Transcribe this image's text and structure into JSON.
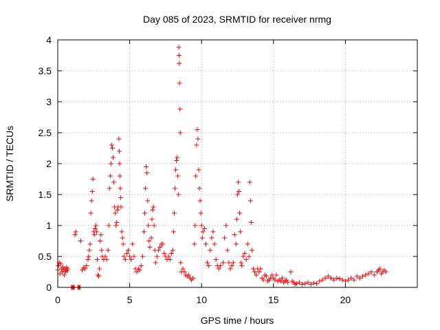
{
  "chart_data": {
    "type": "scatter",
    "title": "Day 085 of 2023, SRMTID for receiver nrmg",
    "xlabel": "GPS time / hours",
    "ylabel": "SRMTID / TECUs",
    "xlim": [
      0,
      25
    ],
    "ylim": [
      0,
      4
    ],
    "xticks": [
      0,
      5,
      10,
      15,
      20
    ],
    "xtick_labels": [
      "0",
      "5",
      "10",
      "15",
      "20"
    ],
    "yticks": [
      0,
      0.5,
      1,
      1.5,
      2,
      2.5,
      3,
      3.5,
      4
    ],
    "ytick_labels": [
      "0",
      "0.5",
      "1",
      "1.5",
      "2",
      "2.5",
      "3",
      "3.5",
      "4"
    ],
    "grid": true,
    "marker": "+",
    "series": [
      {
        "name": "SRMTID",
        "color": "#ff0000",
        "points": [
          [
            0.0,
            0.28
          ],
          [
            0.05,
            0.35
          ],
          [
            0.1,
            0.4
          ],
          [
            0.15,
            0.22
          ],
          [
            0.2,
            0.38
          ],
          [
            0.25,
            0.3
          ],
          [
            0.3,
            0.25
          ],
          [
            0.35,
            0.33
          ],
          [
            0.4,
            0.28
          ],
          [
            0.45,
            0.2
          ],
          [
            0.5,
            0.3
          ],
          [
            0.55,
            0.25
          ],
          [
            0.6,
            0.32
          ],
          [
            0.65,
            0.27
          ],
          [
            0.7,
            0.3
          ],
          [
            0.95,
            0.0
          ],
          [
            1.0,
            0.0
          ],
          [
            1.05,
            0.0
          ],
          [
            1.1,
            0.0
          ],
          [
            1.15,
            0.0
          ],
          [
            1.4,
            0.0
          ],
          [
            1.45,
            0.0
          ],
          [
            1.5,
            0.0
          ],
          [
            1.55,
            0.0
          ],
          [
            1.2,
            0.85
          ],
          [
            1.25,
            0.9
          ],
          [
            1.6,
            0.75
          ],
          [
            1.7,
            0.28
          ],
          [
            1.8,
            0.32
          ],
          [
            1.9,
            0.3
          ],
          [
            2.0,
            0.35
          ],
          [
            2.1,
            0.45
          ],
          [
            2.15,
            0.5
          ],
          [
            2.2,
            0.6
          ],
          [
            2.25,
            0.7
          ],
          [
            2.3,
            1.2
          ],
          [
            2.35,
            1.4
          ],
          [
            2.4,
            1.55
          ],
          [
            2.45,
            1.75
          ],
          [
            2.5,
            0.9
          ],
          [
            2.55,
            0.85
          ],
          [
            2.6,
            0.95
          ],
          [
            2.65,
            1.0
          ],
          [
            2.7,
            0.9
          ],
          [
            2.75,
            0.45
          ],
          [
            2.8,
            0.2
          ],
          [
            2.85,
            0.18
          ],
          [
            2.9,
            0.3
          ],
          [
            2.95,
            0.75
          ],
          [
            3.0,
            0.85
          ],
          [
            3.05,
            0.6
          ],
          [
            3.1,
            0.5
          ],
          [
            3.2,
            0.45
          ],
          [
            3.3,
            0.5
          ],
          [
            3.4,
            0.45
          ],
          [
            3.5,
            0.6
          ],
          [
            3.55,
            1.0
          ],
          [
            3.6,
            1.6
          ],
          [
            3.65,
            1.8
          ],
          [
            3.7,
            2.0
          ],
          [
            3.75,
            2.3
          ],
          [
            3.8,
            2.25
          ],
          [
            3.85,
            2.1
          ],
          [
            3.9,
            1.7
          ],
          [
            3.95,
            1.3
          ],
          [
            4.0,
            1.2
          ],
          [
            4.05,
            1.0
          ],
          [
            4.1,
            1.05
          ],
          [
            4.15,
            1.25
          ],
          [
            4.2,
            1.3
          ],
          [
            4.25,
            2.4
          ],
          [
            4.28,
            2.2
          ],
          [
            4.3,
            2.0
          ],
          [
            4.32,
            1.8
          ],
          [
            4.35,
            1.6
          ],
          [
            4.38,
            1.45
          ],
          [
            4.4,
            1.3
          ],
          [
            4.45,
            0.9
          ],
          [
            4.5,
            0.8
          ],
          [
            4.55,
            0.7
          ],
          [
            4.6,
            0.5
          ],
          [
            4.7,
            0.45
          ],
          [
            4.8,
            0.55
          ],
          [
            4.9,
            0.6
          ],
          [
            5.0,
            0.5
          ],
          [
            5.1,
            0.45
          ],
          [
            5.2,
            0.7
          ],
          [
            5.3,
            0.5
          ],
          [
            5.4,
            0.3
          ],
          [
            5.5,
            0.25
          ],
          [
            5.6,
            0.3
          ],
          [
            5.7,
            0.28
          ],
          [
            5.8,
            0.35
          ],
          [
            5.9,
            0.5
          ],
          [
            6.0,
            0.9
          ],
          [
            6.05,
            1.2
          ],
          [
            6.1,
            1.6
          ],
          [
            6.15,
            1.95
          ],
          [
            6.2,
            1.85
          ],
          [
            6.25,
            1.4
          ],
          [
            6.3,
            1.0
          ],
          [
            6.35,
            0.75
          ],
          [
            6.4,
            0.65
          ],
          [
            6.5,
            0.8
          ],
          [
            6.55,
            1.1
          ],
          [
            6.6,
            1.25
          ],
          [
            6.65,
            1.3
          ],
          [
            6.7,
            1.0
          ],
          [
            6.75,
            0.6
          ],
          [
            6.8,
            0.4
          ],
          [
            6.9,
            0.5
          ],
          [
            7.0,
            0.6
          ],
          [
            7.1,
            0.65
          ],
          [
            7.2,
            0.7
          ],
          [
            7.3,
            0.7
          ],
          [
            7.4,
            0.55
          ],
          [
            7.5,
            0.5
          ],
          [
            7.6,
            0.45
          ],
          [
            7.7,
            0.5
          ],
          [
            7.8,
            0.45
          ],
          [
            7.9,
            0.55
          ],
          [
            8.0,
            0.6
          ],
          [
            8.05,
            0.9
          ],
          [
            8.1,
            1.2
          ],
          [
            8.15,
            1.6
          ],
          [
            8.2,
            1.9
          ],
          [
            8.25,
            2.05
          ],
          [
            8.3,
            2.1
          ],
          [
            8.35,
            1.8
          ],
          [
            8.4,
            1.5
          ],
          [
            8.42,
            3.88
          ],
          [
            8.44,
            3.75
          ],
          [
            8.45,
            3.62
          ],
          [
            8.47,
            3.3
          ],
          [
            8.5,
            2.88
          ],
          [
            8.52,
            2.5
          ],
          [
            8.55,
            0.4
          ],
          [
            8.6,
            0.25
          ],
          [
            8.7,
            0.3
          ],
          [
            8.8,
            0.25
          ],
          [
            8.9,
            0.2
          ],
          [
            9.0,
            0.18
          ],
          [
            9.1,
            0.2
          ],
          [
            9.2,
            0.15
          ],
          [
            9.3,
            0.12
          ],
          [
            9.4,
            0.15
          ],
          [
            9.5,
            0.7
          ],
          [
            9.55,
            1.0
          ],
          [
            9.6,
            1.8
          ],
          [
            9.65,
            2.3
          ],
          [
            9.7,
            2.55
          ],
          [
            9.75,
            2.4
          ],
          [
            9.8,
            1.9
          ],
          [
            9.85,
            1.6
          ],
          [
            9.9,
            1.4
          ],
          [
            9.95,
            1.2
          ],
          [
            10.0,
            1.0
          ],
          [
            10.05,
            0.8
          ],
          [
            10.1,
            0.9
          ],
          [
            10.2,
            0.95
          ],
          [
            10.3,
            0.7
          ],
          [
            10.4,
            0.4
          ],
          [
            10.5,
            0.35
          ],
          [
            10.6,
            0.6
          ],
          [
            10.7,
            0.8
          ],
          [
            10.8,
            0.9
          ],
          [
            10.9,
            0.7
          ],
          [
            11.0,
            0.45
          ],
          [
            11.1,
            0.35
          ],
          [
            11.2,
            0.3
          ],
          [
            11.3,
            0.35
          ],
          [
            11.5,
            0.4
          ],
          [
            11.6,
            0.8
          ],
          [
            11.7,
            1.0
          ],
          [
            11.8,
            0.6
          ],
          [
            11.9,
            0.4
          ],
          [
            12.0,
            0.3
          ],
          [
            12.1,
            0.35
          ],
          [
            12.2,
            0.4
          ],
          [
            12.3,
            0.85
          ],
          [
            12.4,
            0.7
          ],
          [
            12.45,
            1.1
          ],
          [
            12.5,
            1.5
          ],
          [
            12.55,
            1.7
          ],
          [
            12.6,
            1.55
          ],
          [
            12.65,
            1.2
          ],
          [
            12.7,
            0.9
          ],
          [
            12.75,
            0.4
          ],
          [
            12.8,
            0.35
          ],
          [
            12.9,
            0.5
          ],
          [
            13.0,
            0.55
          ],
          [
            13.1,
            0.45
          ],
          [
            13.2,
            0.7
          ],
          [
            13.3,
            0.5
          ],
          [
            13.35,
            1.7
          ],
          [
            13.4,
            1.4
          ],
          [
            13.45,
            1.05
          ],
          [
            13.5,
            0.6
          ],
          [
            13.6,
            0.3
          ],
          [
            13.7,
            0.25
          ],
          [
            13.8,
            0.2
          ],
          [
            13.9,
            0.3
          ],
          [
            14.0,
            0.25
          ],
          [
            14.1,
            0.3
          ],
          [
            14.2,
            0.15
          ],
          [
            14.3,
            0.12
          ],
          [
            14.4,
            0.2
          ],
          [
            14.5,
            0.18
          ],
          [
            14.6,
            0.1
          ],
          [
            14.7,
            0.12
          ],
          [
            14.8,
            0.15
          ],
          [
            14.9,
            0.2
          ],
          [
            15.0,
            0.15
          ],
          [
            15.1,
            0.12
          ],
          [
            15.2,
            0.2
          ],
          [
            15.3,
            0.1
          ],
          [
            15.4,
            0.12
          ],
          [
            15.5,
            0.1
          ],
          [
            15.6,
            0.15
          ],
          [
            15.7,
            0.08
          ],
          [
            15.8,
            0.1
          ],
          [
            15.9,
            0.12
          ],
          [
            16.0,
            0.08
          ],
          [
            16.2,
            0.25
          ],
          [
            16.3,
            0.1
          ],
          [
            16.4,
            0.08
          ],
          [
            16.5,
            0.05
          ],
          [
            16.6,
            0.06
          ],
          [
            16.8,
            0.08
          ],
          [
            17.0,
            0.05
          ],
          [
            17.2,
            0.06
          ],
          [
            17.4,
            0.08
          ],
          [
            17.6,
            0.05
          ],
          [
            17.8,
            0.07
          ],
          [
            18.0,
            0.06
          ],
          [
            18.2,
            0.1
          ],
          [
            18.4,
            0.12
          ],
          [
            18.6,
            0.15
          ],
          [
            18.8,
            0.18
          ],
          [
            19.0,
            0.15
          ],
          [
            19.2,
            0.12
          ],
          [
            19.4,
            0.15
          ],
          [
            19.6,
            0.14
          ],
          [
            19.8,
            0.12
          ],
          [
            20.0,
            0.1
          ],
          [
            20.2,
            0.12
          ],
          [
            20.4,
            0.15
          ],
          [
            20.6,
            0.12
          ],
          [
            20.8,
            0.18
          ],
          [
            21.0,
            0.15
          ],
          [
            21.2,
            0.18
          ],
          [
            21.4,
            0.2
          ],
          [
            21.6,
            0.22
          ],
          [
            21.8,
            0.25
          ],
          [
            22.0,
            0.2
          ],
          [
            22.2,
            0.25
          ],
          [
            22.3,
            0.28
          ],
          [
            22.4,
            0.3
          ],
          [
            22.5,
            0.22
          ],
          [
            22.6,
            0.25
          ],
          [
            22.7,
            0.28
          ],
          [
            22.8,
            0.25
          ]
        ]
      }
    ]
  }
}
